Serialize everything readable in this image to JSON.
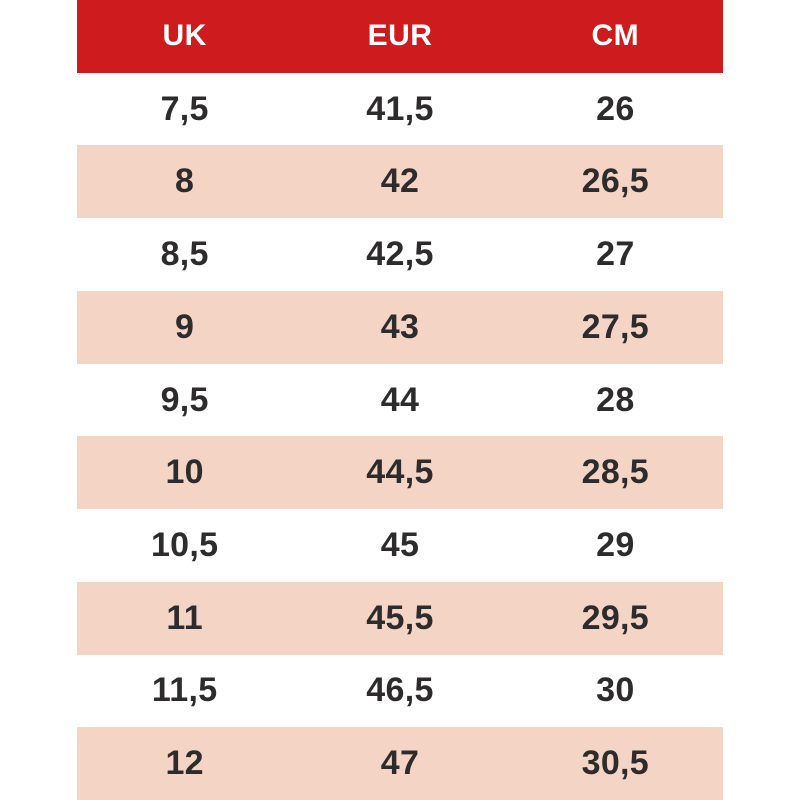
{
  "chart_data": {
    "type": "table",
    "columns": [
      "UK",
      "EUR",
      "CM"
    ],
    "rows": [
      [
        "7,5",
        "41,5",
        "26"
      ],
      [
        "8",
        "42",
        "26,5"
      ],
      [
        "8,5",
        "42,5",
        "27"
      ],
      [
        "9",
        "43",
        "27,5"
      ],
      [
        "9,5",
        "44",
        "28"
      ],
      [
        "10",
        "44,5",
        "28,5"
      ],
      [
        "10,5",
        "45",
        "29"
      ],
      [
        "11",
        "45,5",
        "29,5"
      ],
      [
        "11,5",
        "46,5",
        "30"
      ],
      [
        "12",
        "47",
        "30,5"
      ]
    ],
    "layout": {
      "header_position": "top",
      "alternating_rows": true,
      "first_data_row_bg": "white",
      "grid": "off",
      "decimal_separator": "comma"
    },
    "colors": {
      "header_bg": "#ce1b1e",
      "header_text": "#ffffff",
      "row_even_bg": "#ffffff",
      "row_odd_bg": "#f4d4c5",
      "cell_text": "#2d2b2b",
      "page_bg": "#ffffff"
    }
  }
}
